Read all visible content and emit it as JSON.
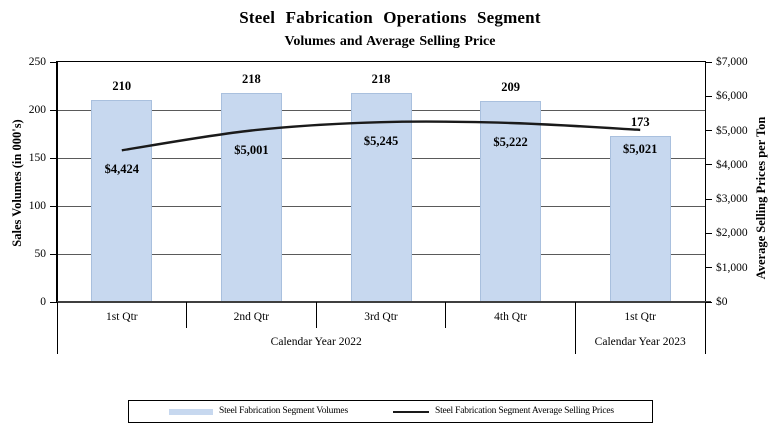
{
  "title": "Steel Fabrication Operations Segment",
  "subtitle": "Volumes and Average Selling Price",
  "chart_data": {
    "type": "bar+line",
    "categories": [
      "1st Qtr",
      "2nd Qtr",
      "3rd Qtr",
      "4th Qtr",
      "1st Qtr"
    ],
    "category_groups": [
      {
        "label": "Calendar Year 2022",
        "span": 4
      },
      {
        "label": "Calendar Year 2023",
        "span": 1
      }
    ],
    "series": [
      {
        "name": "Steel Fabrication Segment Volumes",
        "type": "bar",
        "axis": "left",
        "values": [
          210,
          218,
          218,
          209,
          173
        ],
        "labels": [
          "210",
          "218",
          "218",
          "209",
          "173"
        ],
        "color": "#c7d8ef"
      },
      {
        "name": "Steel Fabrication Segment Average Selling Prices",
        "type": "line",
        "axis": "right",
        "values": [
          4424,
          5001,
          5245,
          5222,
          5021
        ],
        "labels": [
          "$4,424",
          "$5,001",
          "$5,245",
          "$5,222",
          "$5,021"
        ],
        "color": "#1a1a1a"
      }
    ],
    "left_axis": {
      "label": "Sales Volumes (in 000's)",
      "min": 0,
      "max": 250,
      "step": 50,
      "ticks": [
        "0",
        "50",
        "100",
        "150",
        "200",
        "250"
      ]
    },
    "right_axis": {
      "label": "Average Selling Prices per Ton",
      "min": 0,
      "max": 7000,
      "step": 1000,
      "ticks": [
        "$0",
        "$1,000",
        "$2,000",
        "$3,000",
        "$4,000",
        "$5,000",
        "$6,000",
        "$7,000"
      ]
    },
    "grid": true,
    "legend_position": "bottom"
  }
}
